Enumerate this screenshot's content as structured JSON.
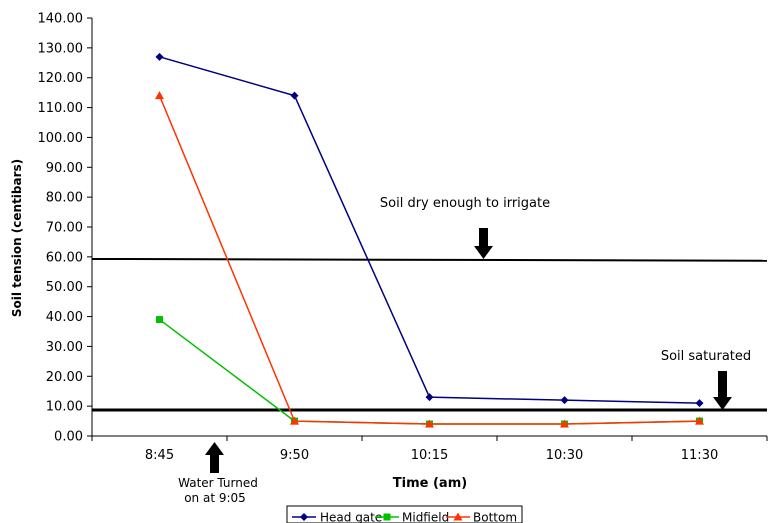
{
  "chart_data": {
    "type": "line",
    "xlabel": "Time (am)",
    "ylabel": "Soil tension (centibars)",
    "categories": [
      "8:45",
      "9:50",
      "10:15",
      "10:30",
      "11:30"
    ],
    "ylim": [
      0,
      140
    ],
    "yticks": [
      "0.00",
      "10.00",
      "20.00",
      "30.00",
      "40.00",
      "50.00",
      "60.00",
      "70.00",
      "80.00",
      "90.00",
      "100.00",
      "110.00",
      "120.00",
      "130.00",
      "140.00"
    ],
    "grid": false,
    "legend_position": "bottom",
    "series": [
      {
        "name": "Head gate",
        "color": "#000080",
        "marker": "diamond",
        "values": [
          127,
          114,
          13,
          12,
          11
        ]
      },
      {
        "name": "Midfield",
        "color": "#00C000",
        "marker": "square",
        "values": [
          39,
          5,
          4,
          4,
          5
        ]
      },
      {
        "name": "Bottom",
        "color": "#FF3300",
        "marker": "triangle",
        "values": [
          114,
          5,
          4,
          4,
          5
        ]
      }
    ],
    "reference_lines": [
      {
        "y_start": 59.3,
        "y_end": 58.7,
        "label": "Soil dry enough to irrigate"
      },
      {
        "y_start": 8.7,
        "y_end": 8.7,
        "label": "Soil saturated"
      }
    ],
    "annotations": [
      {
        "label": "Soil dry enough to irrigate"
      },
      {
        "label": "Soil saturated"
      },
      {
        "line1": "Water Turned",
        "line2": "on at 9:05"
      }
    ]
  }
}
